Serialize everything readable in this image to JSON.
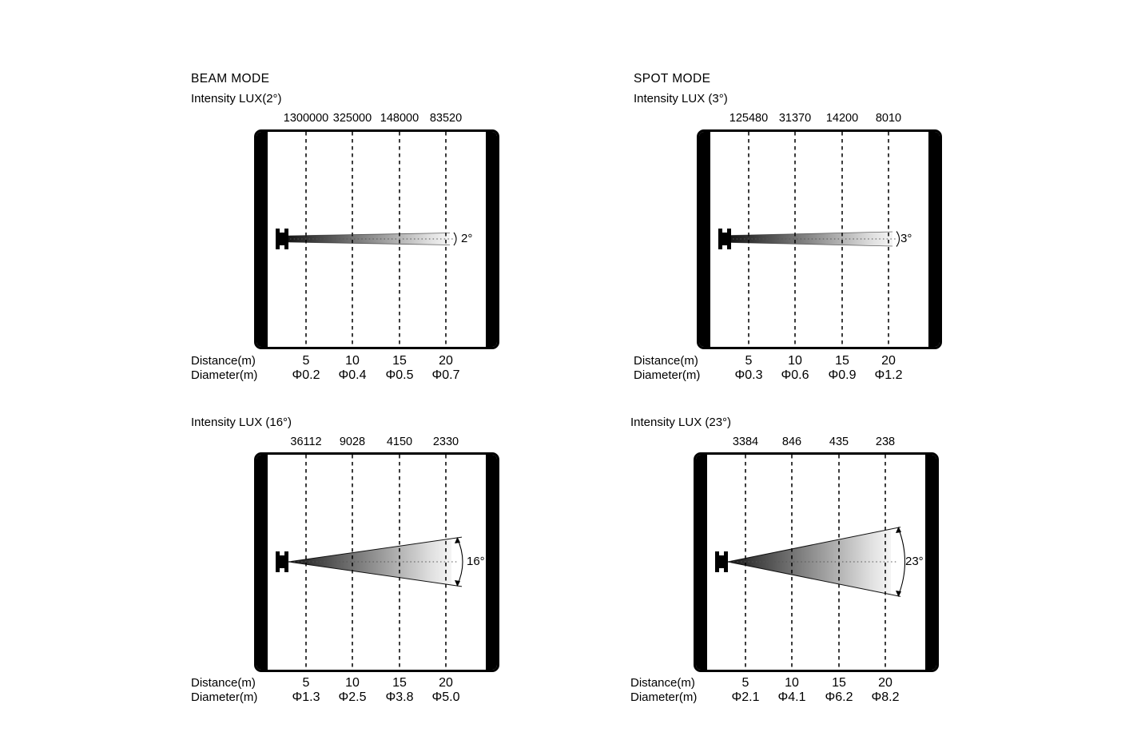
{
  "page": {
    "background": "#ffffff",
    "ink": "#000000",
    "dash_color": "#3c3c3c"
  },
  "panels": [
    {
      "mode_title": "BEAM MODE",
      "intensity_label": "Intensity LUX(2°)",
      "beam_angle_label": "2°",
      "beam_angle_deg": 2,
      "intensities": [
        "1300000",
        "325000",
        "148000",
        "83520"
      ],
      "distance_label": "Distance(m)",
      "diameter_label": "Diameter(m)",
      "distances": [
        "5",
        "10",
        "15",
        "20"
      ],
      "diameters": [
        "Φ0.2",
        "Φ0.4",
        "Φ0.5",
        "Φ0.7"
      ]
    },
    {
      "mode_title": "SPOT MODE",
      "intensity_label": "Intensity LUX (3°)",
      "beam_angle_label": "3°",
      "beam_angle_deg": 3,
      "intensities": [
        "125480",
        "31370",
        "14200",
        "8010"
      ],
      "distance_label": "Distance(m)",
      "diameter_label": "Diameter(m)",
      "distances": [
        "5",
        "10",
        "15",
        "20"
      ],
      "diameters": [
        "Φ0.3",
        "Φ0.6",
        "Φ0.9",
        "Φ1.2"
      ]
    },
    {
      "intensity_label": "Intensity LUX (16°)",
      "beam_angle_label": "16°",
      "beam_angle_deg": 16,
      "intensities": [
        "36112",
        "9028",
        "4150",
        "2330"
      ],
      "distance_label": "Distance(m)",
      "diameter_label": "Diameter(m)",
      "distances": [
        "5",
        "10",
        "15",
        "20"
      ],
      "diameters": [
        "Φ1.3",
        "Φ2.5",
        "Φ3.8",
        "Φ5.0"
      ]
    },
    {
      "intensity_label": "Intensity LUX (23°)",
      "beam_angle_label": "23°",
      "beam_angle_deg": 23,
      "intensities": [
        "3384",
        "846",
        "435",
        "238"
      ],
      "distance_label": "Distance(m)",
      "diameter_label": "Diameter(m)",
      "distances": [
        "5",
        "10",
        "15",
        "20"
      ],
      "diameters": [
        "Φ2.1",
        "Φ4.1",
        "Φ6.2",
        "Φ8.2"
      ]
    }
  ],
  "chart_data": [
    {
      "type": "table",
      "title": "BEAM MODE — Intensity LUX(2°)",
      "beam_angle_deg": 2,
      "xlabel": "Distance(m)",
      "x": [
        5,
        10,
        15,
        20
      ],
      "series": [
        {
          "name": "Intensity (lux)",
          "values": [
            1300000,
            325000,
            148000,
            83520
          ]
        },
        {
          "name": "Beam diameter (m)",
          "values": [
            0.2,
            0.4,
            0.5,
            0.7
          ]
        }
      ]
    },
    {
      "type": "table",
      "title": "SPOT MODE — Intensity LUX (3°)",
      "beam_angle_deg": 3,
      "xlabel": "Distance(m)",
      "x": [
        5,
        10,
        15,
        20
      ],
      "series": [
        {
          "name": "Intensity (lux)",
          "values": [
            125480,
            31370,
            14200,
            8010
          ]
        },
        {
          "name": "Beam diameter (m)",
          "values": [
            0.3,
            0.6,
            0.9,
            1.2
          ]
        }
      ]
    },
    {
      "type": "table",
      "title": "BEAM MODE — Intensity LUX (16°)",
      "beam_angle_deg": 16,
      "xlabel": "Distance(m)",
      "x": [
        5,
        10,
        15,
        20
      ],
      "series": [
        {
          "name": "Intensity (lux)",
          "values": [
            36112,
            9028,
            4150,
            2330
          ]
        },
        {
          "name": "Beam diameter (m)",
          "values": [
            1.3,
            2.5,
            3.8,
            5.0
          ]
        }
      ]
    },
    {
      "type": "table",
      "title": "SPOT MODE — Intensity LUX (23°)",
      "beam_angle_deg": 23,
      "xlabel": "Distance(m)",
      "x": [
        5,
        10,
        15,
        20
      ],
      "series": [
        {
          "name": "Intensity (lux)",
          "values": [
            3384,
            846,
            435,
            238
          ]
        },
        {
          "name": "Beam diameter (m)",
          "values": [
            2.1,
            4.1,
            6.2,
            8.2
          ]
        }
      ]
    }
  ]
}
